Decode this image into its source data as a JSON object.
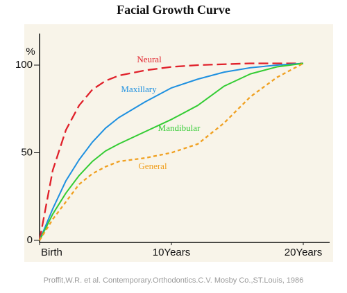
{
  "chart_data": {
    "type": "line",
    "title": "Facial Growth Curve",
    "ylabel": "%",
    "source": "Proffit,W.R. et al. Contemporary.Orthodontics.C.V. Mosby Co.,ST.Louis, 1986",
    "x": [
      0,
      1,
      2,
      3,
      4,
      5,
      6,
      8,
      10,
      12,
      14,
      16,
      18,
      20
    ],
    "xlim": [
      0,
      22
    ],
    "xticks": [
      {
        "value": 0,
        "label": "Birth"
      },
      {
        "value": 10,
        "label": "10Years"
      },
      {
        "value": 20,
        "label": "20Years"
      }
    ],
    "ylim": [
      0,
      118
    ],
    "yticks": [
      0,
      50,
      100
    ],
    "series": [
      {
        "name": "Neural",
        "color": "#e0202a",
        "dash": "14,6",
        "values": [
          0,
          40,
          63,
          77,
          86,
          91,
          94,
          97,
          99,
          100,
          100.5,
          101,
          101,
          101
        ]
      },
      {
        "name": "Maxillary",
        "color": "#1e90e0",
        "dash": null,
        "values": [
          0,
          18,
          34,
          46,
          56,
          64,
          70,
          79,
          87,
          92,
          96,
          98.5,
          100,
          101
        ]
      },
      {
        "name": "Mandibular",
        "color": "#33cc33",
        "dash": null,
        "values": [
          0,
          15,
          27,
          37,
          45,
          51,
          55,
          62,
          69,
          77,
          88,
          95,
          99,
          101
        ]
      },
      {
        "name": "General",
        "color": "#f0a020",
        "dash": "5,4",
        "values": [
          0,
          12,
          22,
          32,
          38,
          42,
          45,
          47,
          50,
          55,
          67,
          82,
          93,
          101
        ]
      }
    ]
  }
}
